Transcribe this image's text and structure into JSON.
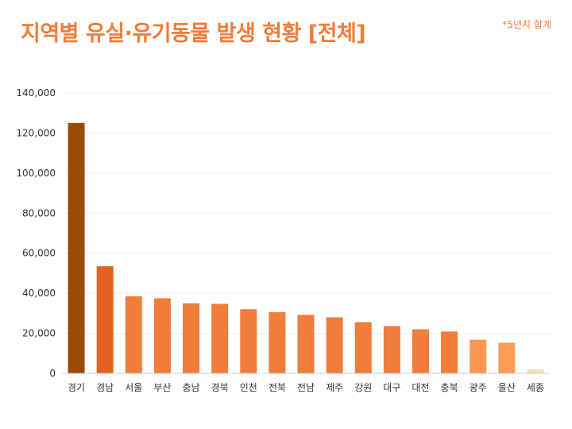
{
  "title": "지역별 유실·유기동물 발생 현황 [전체]",
  "note": "*5년치 합계",
  "colors": {
    "title": "#f07d3a",
    "gridline": "#ececec",
    "axis": "#cccccc"
  },
  "chart_data": {
    "type": "bar",
    "title": "지역별 유실·유기동물 발생 현황 [전체]",
    "xlabel": "",
    "ylabel": "",
    "ylim": [
      0,
      140000
    ],
    "yticks": [
      0,
      20000,
      40000,
      60000,
      80000,
      100000,
      120000,
      140000
    ],
    "ytick_labels": [
      "0",
      "20,000",
      "40,000",
      "60,000",
      "80,000",
      "100,000",
      "120,000",
      "140,000"
    ],
    "grid": true,
    "categories": [
      "경기",
      "경남",
      "서울",
      "부산",
      "충남",
      "경북",
      "인천",
      "전북",
      "전남",
      "제주",
      "강원",
      "대구",
      "대전",
      "충북",
      "광주",
      "울산",
      "세종"
    ],
    "values": [
      125000,
      53500,
      38500,
      37500,
      35000,
      34700,
      32000,
      30600,
      29200,
      28000,
      25600,
      23600,
      22000,
      20900,
      16800,
      15300,
      2000
    ],
    "bar_colors": [
      "#9a4a07",
      "#e2621f",
      "#f07d3a",
      "#f07d3a",
      "#f07d3a",
      "#f07d3a",
      "#f07d3a",
      "#f07d3a",
      "#f07d3a",
      "#f07d3a",
      "#f07d3a",
      "#f07d3a",
      "#f07d3a",
      "#f07d3a",
      "#fa9650",
      "#fc9c58",
      "#fcdcae"
    ]
  }
}
